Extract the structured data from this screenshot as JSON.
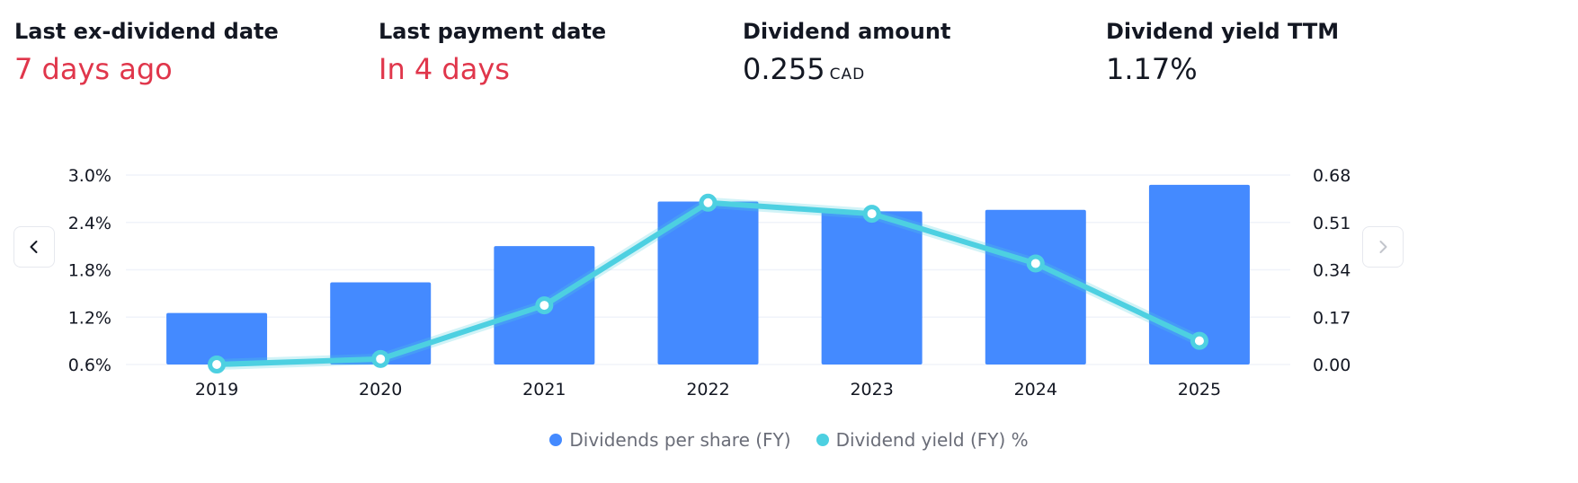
{
  "stats": [
    {
      "label": "Last ex-dividend date",
      "value": "7 days ago",
      "unit": ""
    },
    {
      "label": "Last payment date",
      "value": "In 4 days",
      "unit": ""
    },
    {
      "label": "Dividend amount",
      "value": "0.255",
      "unit": "CAD"
    },
    {
      "label": "Dividend yield TTM",
      "value": "1.17%",
      "unit": ""
    }
  ],
  "colors": {
    "highlight_red": "#e0364b",
    "bar_blue": "#448aff",
    "line_cyan": "#4dd0e1",
    "grid": "#f0f3fa",
    "axis_text": "#131722",
    "legend_text": "#6a6d78"
  },
  "navigation": {
    "prev_icon": "chevron-left-icon",
    "next_icon": "chevron-right-icon"
  },
  "chart_data": {
    "type": "bar",
    "categories": [
      "2019",
      "2020",
      "2021",
      "2022",
      "2023",
      "2024",
      "2025"
    ],
    "series": [
      {
        "name": "Dividends per share (FY)",
        "type": "bar",
        "axis": "right",
        "values": [
          0.185,
          0.295,
          0.425,
          0.585,
          0.55,
          0.555,
          0.645
        ]
      },
      {
        "name": "Dividend yield (FY) %",
        "type": "line",
        "axis": "left",
        "values": [
          0.6,
          0.67,
          1.35,
          2.65,
          2.51,
          1.88,
          0.9
        ]
      }
    ],
    "y_left": {
      "ticks": [
        "0.6%",
        "1.2%",
        "1.8%",
        "2.4%",
        "3.0%"
      ],
      "range": [
        0.6,
        3.0
      ]
    },
    "y_right": {
      "ticks": [
        "0.00",
        "0.17",
        "0.34",
        "0.51",
        "0.68"
      ],
      "range": [
        0,
        0.68
      ]
    },
    "grid": true,
    "legend_position": "bottom-center"
  }
}
